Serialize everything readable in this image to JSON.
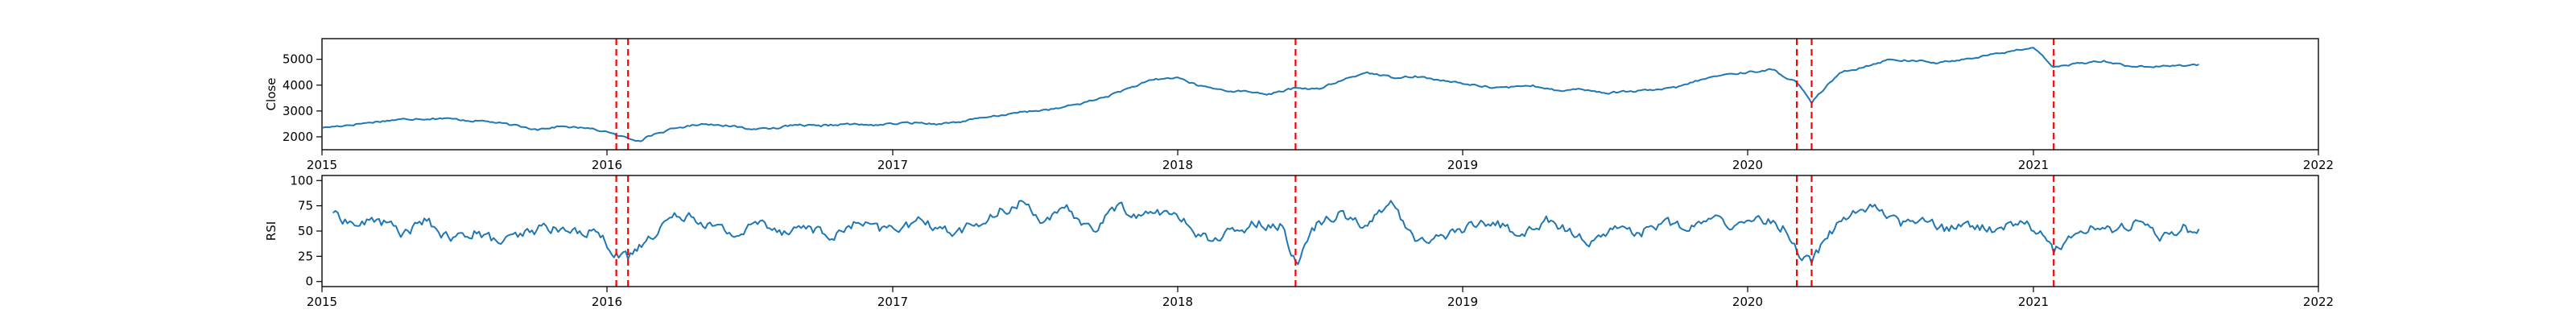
{
  "chart_data": [
    {
      "type": "line",
      "ylabel": "Close",
      "xlim": [
        "2015-01-01",
        "2022-01-01"
      ],
      "ylim": [
        1500,
        5800
      ],
      "x_ticks": [
        "2015",
        "2016",
        "2017",
        "2018",
        "2019",
        "2020",
        "2021",
        "2022"
      ],
      "y_ticks": [
        2000,
        3000,
        4000,
        5000
      ],
      "grid": false,
      "series_color": "#1f77b4",
      "vline_color": "#ff0000",
      "vlines": [
        "2016-01-13",
        "2016-01-28",
        "2018-06-01",
        "2020-03-04",
        "2020-03-23",
        "2021-01-27"
      ],
      "series": [
        {
          "x": [
            "2015-01-02",
            "2015-02-01",
            "2015-03-01",
            "2015-04-01",
            "2015-05-01",
            "2015-06-01",
            "2015-07-01",
            "2015-08-01",
            "2015-09-01",
            "2015-10-01",
            "2015-11-01",
            "2015-12-01",
            "2016-01-01",
            "2016-01-13",
            "2016-01-28",
            "2016-02-10",
            "2016-03-01",
            "2016-04-01",
            "2016-05-01",
            "2016-06-01",
            "2016-07-01",
            "2016-08-01",
            "2016-09-01",
            "2016-10-01",
            "2016-11-01",
            "2016-12-01",
            "2017-01-01",
            "2017-02-01",
            "2017-03-01",
            "2017-04-01",
            "2017-05-01",
            "2017-06-01",
            "2017-07-01",
            "2017-08-01",
            "2017-09-01",
            "2017-10-01",
            "2017-11-01",
            "2017-12-01",
            "2018-01-01",
            "2018-01-25",
            "2018-03-01",
            "2018-04-01",
            "2018-05-01",
            "2018-06-01",
            "2018-07-01",
            "2018-08-01",
            "2018-09-01",
            "2018-10-01",
            "2018-11-01",
            "2018-12-01",
            "2019-01-01",
            "2019-02-01",
            "2019-03-01",
            "2019-04-01",
            "2019-05-01",
            "2019-06-01",
            "2019-07-01",
            "2019-08-01",
            "2019-09-01",
            "2019-10-01",
            "2019-11-01",
            "2019-12-01",
            "2020-01-01",
            "2020-02-01",
            "2020-03-04",
            "2020-03-23",
            "2020-04-15",
            "2020-05-01",
            "2020-06-01",
            "2020-07-01",
            "2020-08-01",
            "2020-09-01",
            "2020-10-01",
            "2020-11-01",
            "2020-12-01",
            "2021-01-01",
            "2021-01-27",
            "2021-02-15",
            "2021-03-01",
            "2021-04-01",
            "2021-05-01",
            "2021-06-01",
            "2021-07-01",
            "2021-08-01"
          ],
          "y": [
            2350,
            2450,
            2550,
            2650,
            2700,
            2720,
            2650,
            2600,
            2450,
            2300,
            2400,
            2350,
            2200,
            2050,
            1950,
            1850,
            2100,
            2350,
            2500,
            2450,
            2300,
            2350,
            2450,
            2400,
            2500,
            2450,
            2500,
            2550,
            2500,
            2600,
            2750,
            2900,
            3000,
            3100,
            3300,
            3550,
            3900,
            4200,
            4300,
            4000,
            3800,
            3750,
            3650,
            3900,
            3850,
            4200,
            4500,
            4300,
            4350,
            4200,
            4050,
            3950,
            3900,
            4000,
            3800,
            3850,
            3700,
            3750,
            3800,
            3900,
            4200,
            4400,
            4500,
            4600,
            4100,
            3300,
            4100,
            4500,
            4750,
            5000,
            4950,
            4850,
            5000,
            5150,
            5300,
            5450,
            4700,
            4750,
            4850,
            4950,
            4750,
            4700,
            4750,
            4800
          ]
        }
      ]
    },
    {
      "type": "line",
      "ylabel": "RSI",
      "xlim": [
        "2015-01-01",
        "2022-01-01"
      ],
      "ylim": [
        -5,
        105
      ],
      "x_ticks": [
        "2015",
        "2016",
        "2017",
        "2018",
        "2019",
        "2020",
        "2021",
        "2022"
      ],
      "y_ticks": [
        0,
        25,
        50,
        75,
        100
      ],
      "grid": false,
      "series_color": "#1f77b4",
      "vline_color": "#ff0000",
      "vlines": [
        "2016-01-13",
        "2016-01-28",
        "2018-06-01",
        "2020-03-04",
        "2020-03-23",
        "2021-01-27"
      ],
      "series": [
        {
          "x": [
            "2015-01-15",
            "2015-02-15",
            "2015-03-15",
            "2015-04-15",
            "2015-05-15",
            "2015-06-15",
            "2015-07-15",
            "2015-08-15",
            "2015-09-15",
            "2015-10-15",
            "2015-11-15",
            "2015-12-15",
            "2016-01-13",
            "2016-01-28",
            "2016-02-20",
            "2016-03-15",
            "2016-04-15",
            "2016-05-15",
            "2016-06-15",
            "2016-07-15",
            "2016-08-15",
            "2016-09-15",
            "2016-10-15",
            "2016-11-15",
            "2016-12-15",
            "2017-01-15",
            "2017-02-15",
            "2017-03-15",
            "2017-04-15",
            "2017-05-15",
            "2017-06-15",
            "2017-07-15",
            "2017-08-15",
            "2017-09-15",
            "2017-10-15",
            "2017-11-15",
            "2017-12-15",
            "2018-01-15",
            "2018-02-15",
            "2018-03-15",
            "2018-04-15",
            "2018-05-15",
            "2018-06-01",
            "2018-07-01",
            "2018-08-01",
            "2018-09-01",
            "2018-10-01",
            "2018-11-01",
            "2018-12-01",
            "2019-01-15",
            "2019-02-15",
            "2019-03-15",
            "2019-04-15",
            "2019-05-15",
            "2019-06-15",
            "2019-07-15",
            "2019-08-15",
            "2019-09-15",
            "2019-10-15",
            "2019-11-15",
            "2019-12-15",
            "2020-01-15",
            "2020-02-15",
            "2020-03-04",
            "2020-03-23",
            "2020-04-15",
            "2020-05-15",
            "2020-06-15",
            "2020-07-15",
            "2020-08-15",
            "2020-09-15",
            "2020-10-15",
            "2020-11-15",
            "2020-12-15",
            "2021-01-10",
            "2021-01-27",
            "2021-02-15",
            "2021-03-15",
            "2021-04-15",
            "2021-05-15",
            "2021-06-15",
            "2021-07-15",
            "2021-08-01"
          ],
          "y": [
            68,
            55,
            62,
            48,
            60,
            40,
            50,
            38,
            45,
            55,
            48,
            52,
            28,
            22,
            40,
            60,
            68,
            55,
            45,
            60,
            50,
            55,
            42,
            58,
            50,
            55,
            60,
            48,
            55,
            65,
            80,
            60,
            70,
            50,
            75,
            65,
            70,
            55,
            40,
            50,
            60,
            55,
            20,
            60,
            70,
            55,
            80,
            40,
            45,
            55,
            60,
            45,
            60,
            50,
            40,
            55,
            48,
            60,
            50,
            62,
            55,
            65,
            55,
            30,
            18,
            50,
            70,
            72,
            55,
            60,
            50,
            55,
            52,
            60,
            50,
            28,
            45,
            55,
            50,
            60,
            45,
            55,
            52
          ]
        }
      ]
    }
  ]
}
